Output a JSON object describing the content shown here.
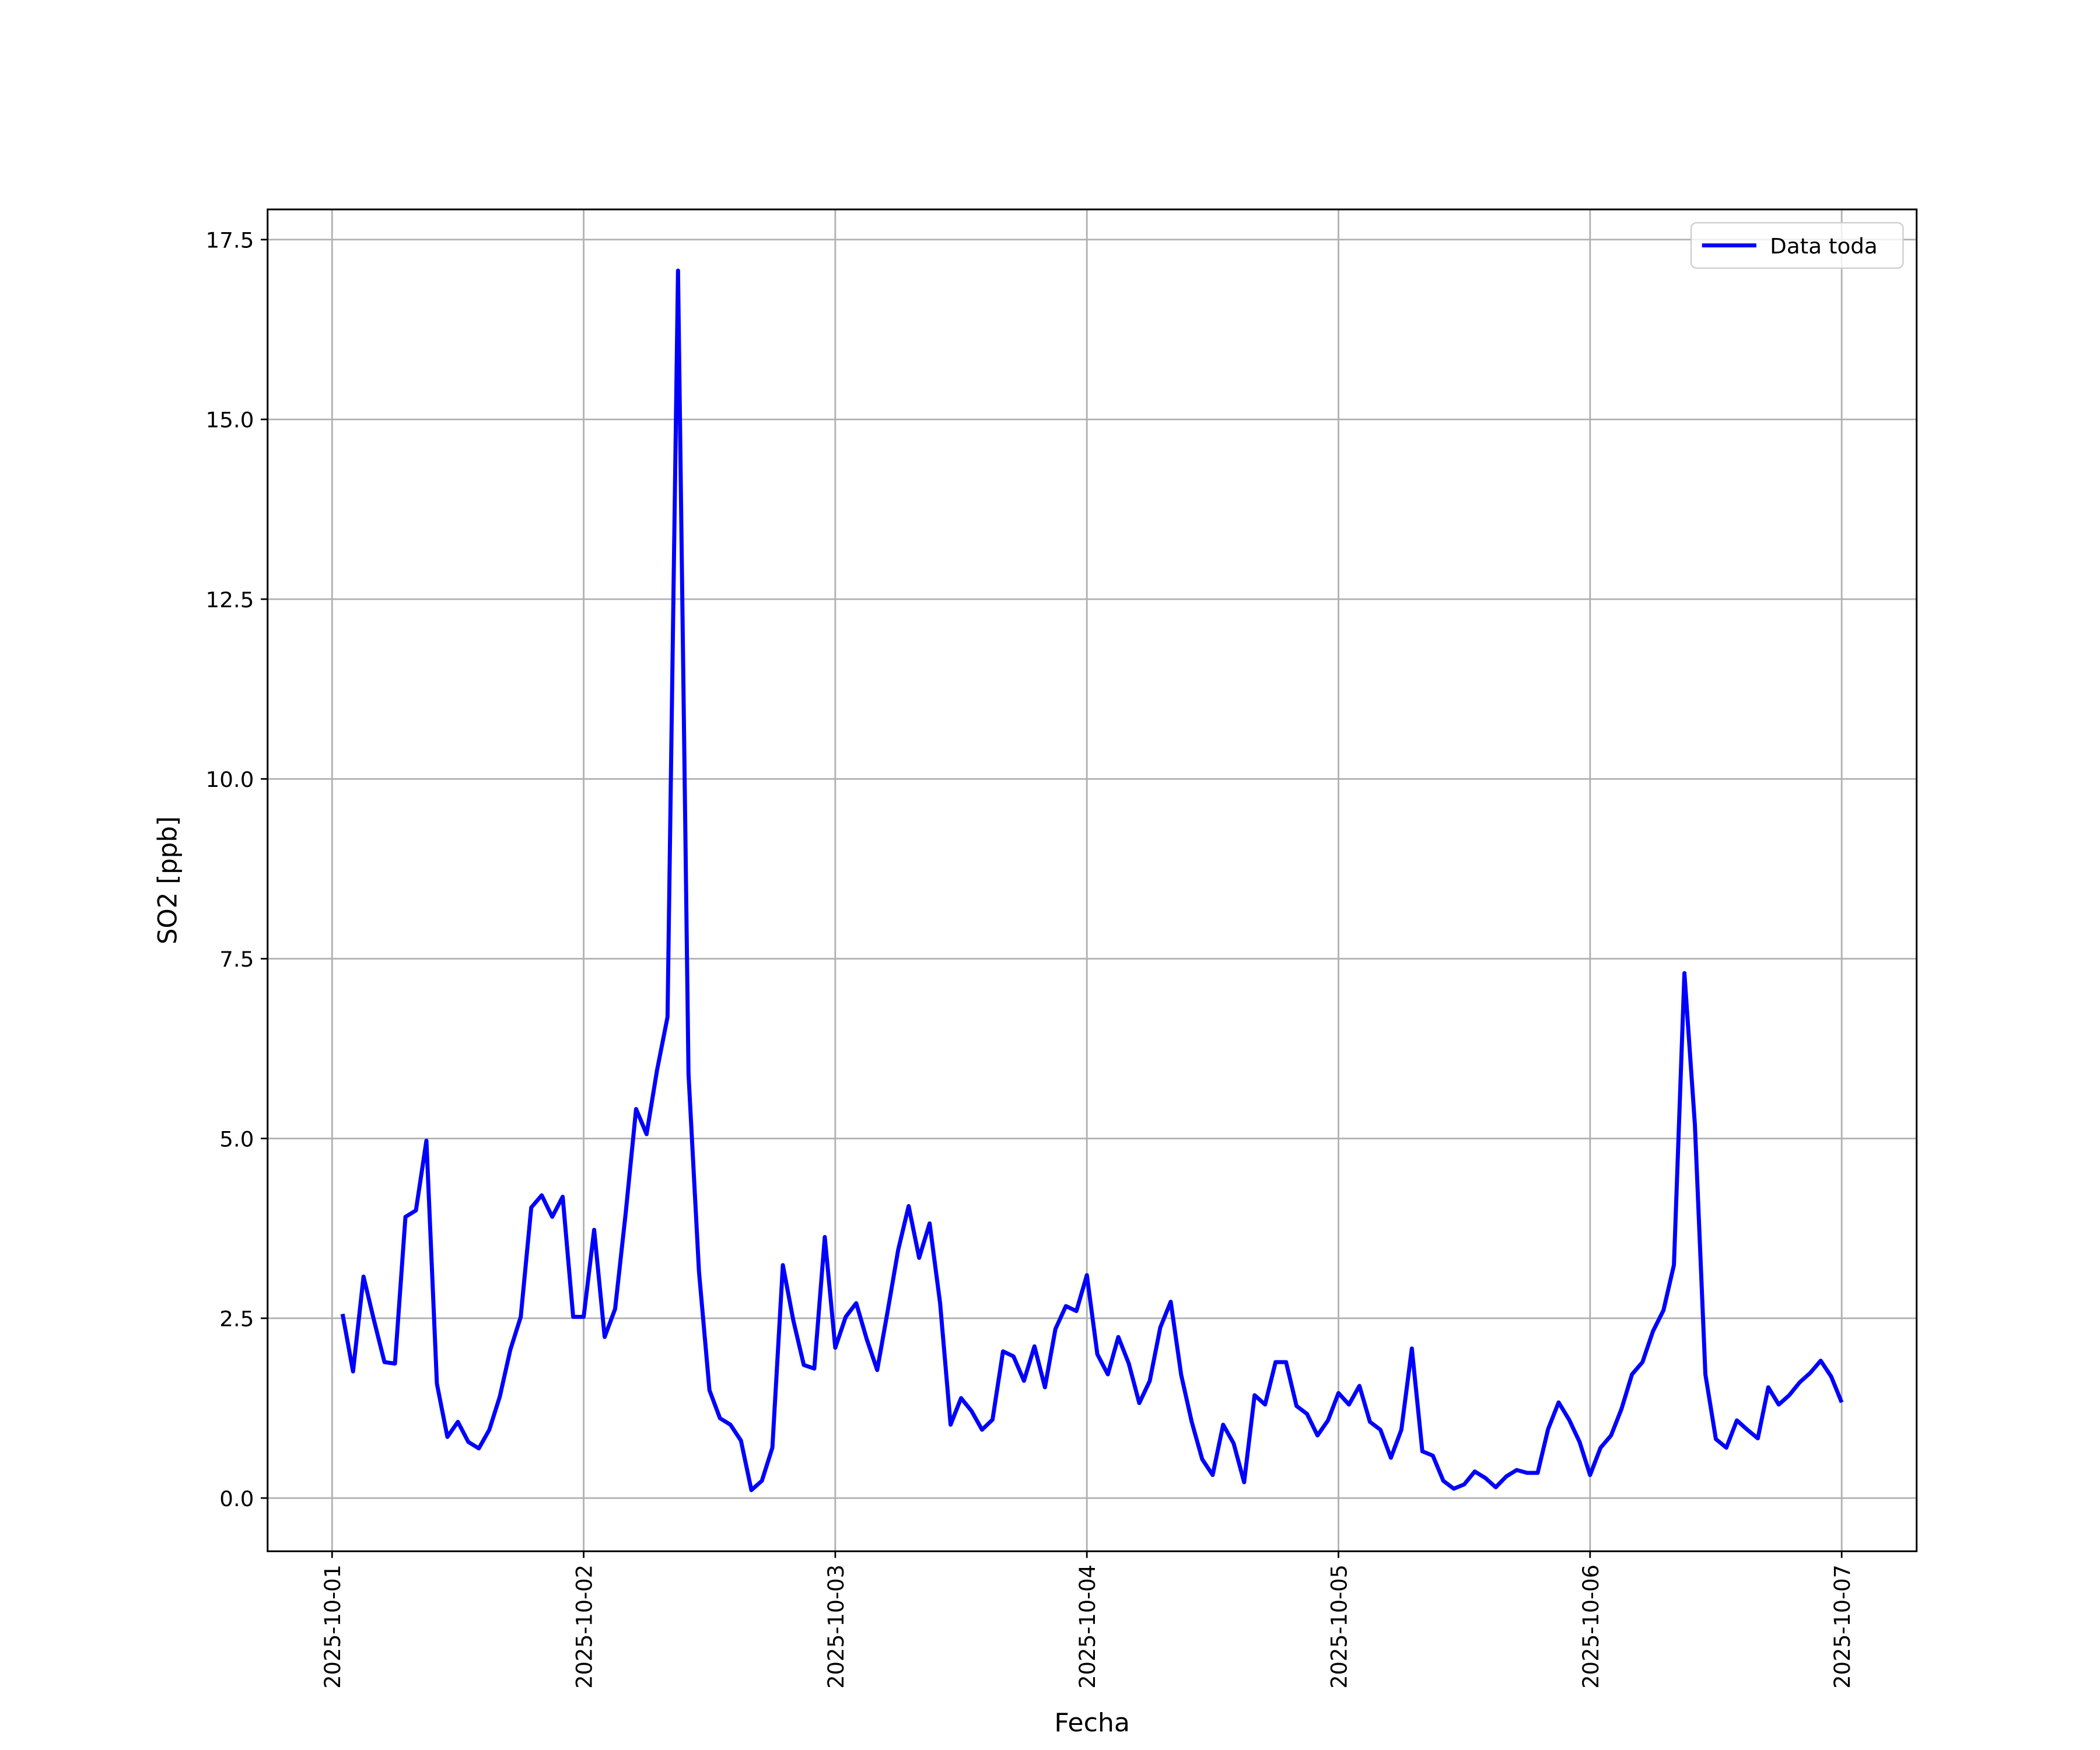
{
  "chart_data": {
    "type": "line",
    "x_label": "Fecha",
    "y_label": "SO2 [ppb]",
    "x": [
      "2025-10-01T01:00",
      "2025-10-01T02:00",
      "2025-10-01T03:00",
      "2025-10-01T04:00",
      "2025-10-01T05:00",
      "2025-10-01T06:00",
      "2025-10-01T07:00",
      "2025-10-01T08:00",
      "2025-10-01T09:00",
      "2025-10-01T10:00",
      "2025-10-01T11:00",
      "2025-10-01T12:00",
      "2025-10-01T13:00",
      "2025-10-01T14:00",
      "2025-10-01T15:00",
      "2025-10-01T16:00",
      "2025-10-01T17:00",
      "2025-10-01T18:00",
      "2025-10-01T19:00",
      "2025-10-01T20:00",
      "2025-10-01T21:00",
      "2025-10-01T22:00",
      "2025-10-01T23:00",
      "2025-10-02T00:00",
      "2025-10-02T01:00",
      "2025-10-02T02:00",
      "2025-10-02T03:00",
      "2025-10-02T04:00",
      "2025-10-02T05:00",
      "2025-10-02T06:00",
      "2025-10-02T07:00",
      "2025-10-02T08:00",
      "2025-10-02T09:00",
      "2025-10-02T10:00",
      "2025-10-02T11:00",
      "2025-10-02T12:00",
      "2025-10-02T13:00",
      "2025-10-02T14:00",
      "2025-10-02T15:00",
      "2025-10-02T16:00",
      "2025-10-02T17:00",
      "2025-10-02T18:00",
      "2025-10-02T19:00",
      "2025-10-02T20:00",
      "2025-10-02T21:00",
      "2025-10-02T22:00",
      "2025-10-02T23:00",
      "2025-10-03T00:00",
      "2025-10-03T01:00",
      "2025-10-03T02:00",
      "2025-10-03T03:00",
      "2025-10-03T04:00",
      "2025-10-03T05:00",
      "2025-10-03T06:00",
      "2025-10-03T07:00",
      "2025-10-03T08:00",
      "2025-10-03T09:00",
      "2025-10-03T10:00",
      "2025-10-03T11:00",
      "2025-10-03T12:00",
      "2025-10-03T13:00",
      "2025-10-03T14:00",
      "2025-10-03T15:00",
      "2025-10-03T16:00",
      "2025-10-03T17:00",
      "2025-10-03T18:00",
      "2025-10-03T19:00",
      "2025-10-03T20:00",
      "2025-10-03T21:00",
      "2025-10-03T22:00",
      "2025-10-03T23:00",
      "2025-10-04T00:00",
      "2025-10-04T01:00",
      "2025-10-04T02:00",
      "2025-10-04T03:00",
      "2025-10-04T04:00",
      "2025-10-04T05:00",
      "2025-10-04T06:00",
      "2025-10-04T07:00",
      "2025-10-04T08:00",
      "2025-10-04T09:00",
      "2025-10-04T10:00",
      "2025-10-04T11:00",
      "2025-10-04T12:00",
      "2025-10-04T13:00",
      "2025-10-04T14:00",
      "2025-10-04T15:00",
      "2025-10-04T16:00",
      "2025-10-04T17:00",
      "2025-10-04T18:00",
      "2025-10-04T19:00",
      "2025-10-04T20:00",
      "2025-10-04T21:00",
      "2025-10-04T22:00",
      "2025-10-04T23:00",
      "2025-10-05T00:00",
      "2025-10-05T01:00",
      "2025-10-05T02:00",
      "2025-10-05T03:00",
      "2025-10-05T04:00",
      "2025-10-05T05:00",
      "2025-10-05T06:00",
      "2025-10-05T07:00",
      "2025-10-05T08:00",
      "2025-10-05T09:00",
      "2025-10-05T10:00",
      "2025-10-05T11:00",
      "2025-10-05T12:00",
      "2025-10-05T13:00",
      "2025-10-05T14:00",
      "2025-10-05T15:00",
      "2025-10-05T16:00",
      "2025-10-05T17:00",
      "2025-10-05T18:00",
      "2025-10-05T19:00",
      "2025-10-05T20:00",
      "2025-10-05T21:00",
      "2025-10-05T22:00",
      "2025-10-05T23:00",
      "2025-10-06T00:00",
      "2025-10-06T01:00",
      "2025-10-06T02:00",
      "2025-10-06T03:00",
      "2025-10-06T04:00",
      "2025-10-06T05:00",
      "2025-10-06T06:00",
      "2025-10-06T07:00",
      "2025-10-06T08:00",
      "2025-10-06T09:00",
      "2025-10-06T10:00",
      "2025-10-06T11:00",
      "2025-10-06T12:00",
      "2025-10-06T13:00",
      "2025-10-06T14:00",
      "2025-10-06T15:00",
      "2025-10-06T16:00",
      "2025-10-06T17:00",
      "2025-10-06T18:00",
      "2025-10-06T19:00",
      "2025-10-06T20:00",
      "2025-10-06T21:00",
      "2025-10-06T22:00",
      "2025-10-06T23:00",
      "2025-10-07T00:00"
    ],
    "series": [
      {
        "name": "Data toda",
        "color": "#0000ff",
        "values": [
          2.56,
          1.76,
          3.08,
          2.47,
          1.89,
          1.87,
          3.91,
          4.0,
          4.97,
          1.59,
          0.85,
          1.06,
          0.78,
          0.69,
          0.95,
          1.41,
          2.06,
          2.52,
          4.04,
          4.21,
          3.91,
          4.19,
          2.52,
          2.52,
          3.73,
          2.24,
          2.63,
          3.95,
          5.41,
          5.06,
          5.95,
          6.69,
          17.07,
          5.9,
          3.15,
          1.5,
          1.11,
          1.02,
          0.8,
          0.11,
          0.24,
          0.7,
          3.24,
          2.47,
          1.85,
          1.8,
          3.63,
          2.09,
          2.52,
          2.71,
          2.21,
          1.78,
          2.6,
          3.45,
          4.06,
          3.34,
          3.82,
          2.71,
          1.02,
          1.39,
          1.21,
          0.95,
          1.09,
          2.04,
          1.97,
          1.63,
          2.11,
          1.54,
          2.35,
          2.67,
          2.6,
          3.1,
          2.0,
          1.72,
          2.24,
          1.87,
          1.32,
          1.63,
          2.37,
          2.73,
          1.71,
          1.06,
          0.54,
          0.32,
          1.02,
          0.76,
          0.22,
          1.43,
          1.3,
          1.89,
          1.89,
          1.28,
          1.17,
          0.87,
          1.08,
          1.46,
          1.3,
          1.56,
          1.06,
          0.95,
          0.56,
          0.95,
          2.08,
          0.65,
          0.59,
          0.24,
          0.13,
          0.19,
          0.37,
          0.28,
          0.15,
          0.3,
          0.39,
          0.35,
          0.35,
          0.96,
          1.33,
          1.09,
          0.78,
          0.32,
          0.7,
          0.87,
          1.24,
          1.72,
          1.89,
          2.32,
          2.61,
          3.24,
          7.3,
          5.19,
          1.72,
          0.82,
          0.7,
          1.08,
          0.95,
          0.83,
          1.54,
          1.3,
          1.43,
          1.61,
          1.74,
          1.91,
          1.69,
          1.33
        ]
      }
    ],
    "xlim": [
      "2025-09-30T17:51",
      "2025-10-07T07:09"
    ],
    "xticks": [
      "2025-10-01",
      "2025-10-02",
      "2025-10-03",
      "2025-10-04",
      "2025-10-05",
      "2025-10-06",
      "2025-10-07"
    ],
    "ylim": [
      -0.74,
      17.92
    ],
    "yticks": [
      {
        "value": 0,
        "label": "0.0"
      },
      2.5,
      {
        "value": 5,
        "label": "5.0"
      },
      7.5,
      {
        "value": 10,
        "label": "10.0"
      },
      12.5,
      {
        "value": 15,
        "label": "15.0"
      },
      17.5
    ],
    "grid": true,
    "legend": "upper right"
  }
}
